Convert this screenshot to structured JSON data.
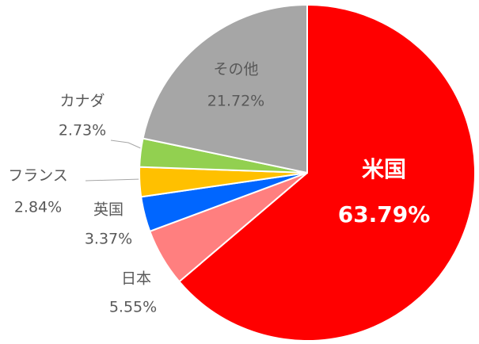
{
  "chart_data": {
    "type": "pie",
    "categories": [
      "米国",
      "日本",
      "英国",
      "フランス",
      "カナダ",
      "その他"
    ],
    "values": [
      63.79,
      5.55,
      3.37,
      2.84,
      2.73,
      21.72
    ],
    "value_labels": [
      "63.79%",
      "5.55%",
      "3.37%",
      "2.84%",
      "2.73%",
      "21.72%"
    ],
    "colors": [
      "#ff0000",
      "#ff7f7f",
      "#0066ff",
      "#ffc000",
      "#92d050",
      "#a6a6a6"
    ]
  }
}
